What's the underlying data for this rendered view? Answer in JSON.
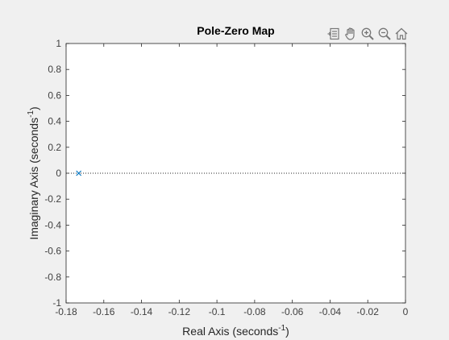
{
  "toolbar": {
    "icons": [
      "export-icon",
      "pan-hand-icon",
      "zoom-in-icon",
      "zoom-out-icon",
      "home-icon"
    ]
  },
  "colors": {
    "figure_bg": "#f0f0f0",
    "axes_bg": "#ffffff",
    "axes_edge": "#262626",
    "tick_label": "#404040",
    "marker": "#0072bd",
    "zero_line": "#262626"
  },
  "chart_data": {
    "type": "scatter",
    "title": "Pole-Zero Map",
    "xlabel": "Real Axis (seconds",
    "xlabel_sup": "-1",
    "xlabel_end": ")",
    "ylabel": "Imaginary Axis (seconds",
    "ylabel_sup": "-1",
    "ylabel_end": ")",
    "xlim": [
      -0.18,
      0
    ],
    "ylim": [
      -1,
      1
    ],
    "xticks": [
      -0.18,
      -0.16,
      -0.14,
      -0.12,
      -0.1,
      -0.08,
      -0.06,
      -0.04,
      -0.02,
      0
    ],
    "xtick_labels": [
      "-0.18",
      "-0.16",
      "-0.14",
      "-0.12",
      "-0.1",
      "-0.08",
      "-0.06",
      "-0.04",
      "-0.02",
      "0"
    ],
    "yticks": [
      -1,
      -0.8,
      -0.6,
      -0.4,
      -0.2,
      0,
      0.2,
      0.4,
      0.6,
      0.8,
      1
    ],
    "ytick_labels": [
      "-1",
      "-0.8",
      "-0.6",
      "-0.4",
      "-0.2",
      "0",
      "0.2",
      "0.4",
      "0.6",
      "0.8",
      "1"
    ],
    "grid": false,
    "zero_line": true,
    "series": [
      {
        "marker": "x",
        "points": [
          [
            -0.1733,
            0
          ]
        ]
      }
    ]
  }
}
